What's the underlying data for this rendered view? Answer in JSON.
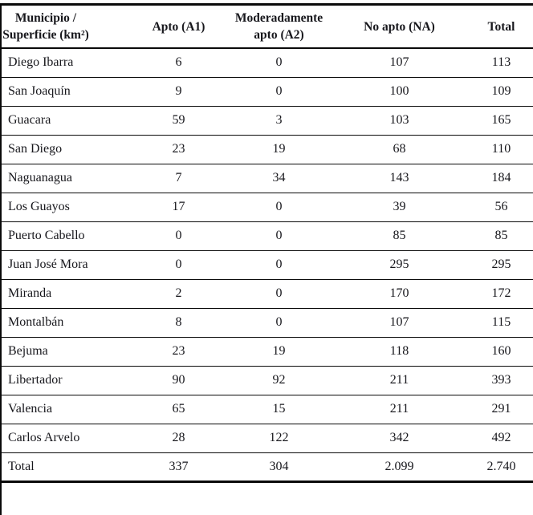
{
  "table": {
    "title_semantic": "Superficie apta por municipio",
    "headers": [
      {
        "key": "municipio",
        "lines": [
          "Municipio /",
          "Superficie (km²)"
        ]
      },
      {
        "key": "apto_a1",
        "lines": [
          "Apto (A1)"
        ]
      },
      {
        "key": "mod_apto_a2",
        "lines": [
          "Moderadamente",
          "apto (A2)"
        ]
      },
      {
        "key": "no_apto_na",
        "lines": [
          "No apto (NA)"
        ]
      },
      {
        "key": "total",
        "lines": [
          "Total"
        ]
      }
    ],
    "rows": [
      {
        "municipio": "Diego Ibarra",
        "apto_a1": "6",
        "mod_apto_a2": "0",
        "no_apto_na": "107",
        "total": "113",
        "is_total": false
      },
      {
        "municipio": "San Joaquín",
        "apto_a1": "9",
        "mod_apto_a2": "0",
        "no_apto_na": "100",
        "total": "109",
        "is_total": false
      },
      {
        "municipio": "Guacara",
        "apto_a1": "59",
        "mod_apto_a2": "3",
        "no_apto_na": "103",
        "total": "165",
        "is_total": false
      },
      {
        "municipio": "San Diego",
        "apto_a1": "23",
        "mod_apto_a2": "19",
        "no_apto_na": "68",
        "total": "110",
        "is_total": false
      },
      {
        "municipio": "Naguanagua",
        "apto_a1": "7",
        "mod_apto_a2": "34",
        "no_apto_na": "143",
        "total": "184",
        "is_total": false
      },
      {
        "municipio": "Los Guayos",
        "apto_a1": "17",
        "mod_apto_a2": "0",
        "no_apto_na": "39",
        "total": "56",
        "is_total": false
      },
      {
        "municipio": "Puerto Cabello",
        "apto_a1": "0",
        "mod_apto_a2": "0",
        "no_apto_na": "85",
        "total": "85",
        "is_total": false
      },
      {
        "municipio": "Juan José Mora",
        "apto_a1": "0",
        "mod_apto_a2": "0",
        "no_apto_na": "295",
        "total": "295",
        "is_total": false
      },
      {
        "municipio": "Miranda",
        "apto_a1": "2",
        "mod_apto_a2": "0",
        "no_apto_na": "170",
        "total": "172",
        "is_total": false
      },
      {
        "municipio": "Montalbán",
        "apto_a1": "8",
        "mod_apto_a2": "0",
        "no_apto_na": "107",
        "total": "115",
        "is_total": false
      },
      {
        "municipio": "Bejuma",
        "apto_a1": "23",
        "mod_apto_a2": "19",
        "no_apto_na": "118",
        "total": "160",
        "is_total": false
      },
      {
        "municipio": "Libertador",
        "apto_a1": "90",
        "mod_apto_a2": "92",
        "no_apto_na": "211",
        "total": "393",
        "is_total": false
      },
      {
        "municipio": "Valencia",
        "apto_a1": "65",
        "mod_apto_a2": "15",
        "no_apto_na": "211",
        "total": "291",
        "is_total": false
      },
      {
        "municipio": "Carlos Arvelo",
        "apto_a1": "28",
        "mod_apto_a2": "122",
        "no_apto_na": "342",
        "total": "492",
        "is_total": false
      },
      {
        "municipio": "Total",
        "apto_a1": "337",
        "mod_apto_a2": "304",
        "no_apto_na": "2.099",
        "total": "2.740",
        "is_total": true
      }
    ]
  },
  "colors": {
    "background": "#ffffff",
    "text": "#17171c",
    "rule": "#0a0a0a"
  }
}
